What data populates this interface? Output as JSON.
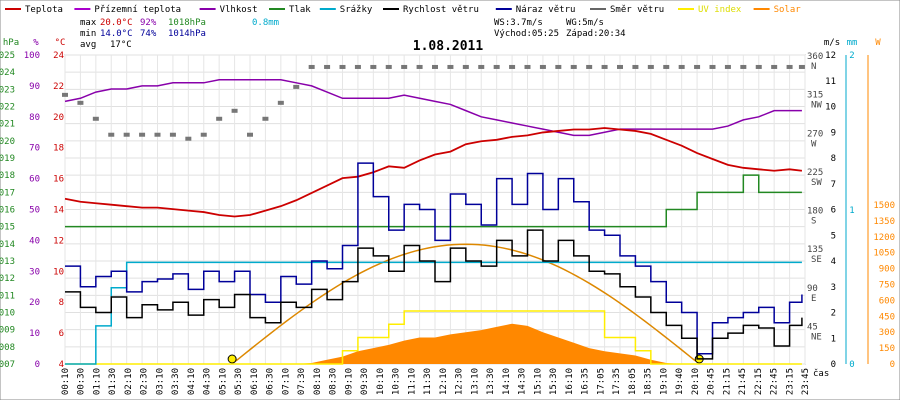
{
  "chart_data": {
    "type": "line",
    "title": "1.08.2011",
    "time_axis_label": "čas",
    "legend": [
      {
        "name": "Teplota",
        "color": "#cc0000"
      },
      {
        "name": "Přízemní teplota",
        "color": "#aa00cc"
      },
      {
        "name": "Vlhkost",
        "color": "#8800aa"
      },
      {
        "name": "Tlak",
        "color": "#228822"
      },
      {
        "name": "Srážky",
        "color": "#00aacc"
      },
      {
        "name": "Rychlost větru",
        "color": "#000000"
      },
      {
        "name": "Náraz větru",
        "color": "#000099"
      },
      {
        "name": "Směr větru",
        "color": "#666666"
      },
      {
        "name": "UV index",
        "color": "#ffee00"
      },
      {
        "name": "Solar",
        "color": "#ff8800"
      }
    ],
    "stats": {
      "max_label": "max",
      "max_temp": "20.0°C",
      "max_hum": "92%",
      "max_press": "1018hPa",
      "rain": "0.8mm",
      "min_label": "min",
      "min_temp": "14.0°C",
      "min_hum": "74%",
      "min_press": "1014hPa",
      "avg_label": "avg",
      "avg_temp": "17°C"
    },
    "info": {
      "ws": "WS:3.7m/s",
      "wg": "WG:5m/s",
      "sunrise": "Východ:05:25",
      "sunset": "Západ:20:34"
    },
    "left_axes": [
      {
        "unit": "hPa",
        "color": "#228822",
        "ticks": [
          "1025",
          "1024",
          "1023",
          "1022",
          "1021",
          "1020",
          "1019",
          "1018",
          "1017",
          "1016",
          "1015",
          "1014",
          "1013",
          "1012",
          "1011",
          "1010",
          "1009",
          "1008",
          "1007"
        ]
      },
      {
        "unit": "%",
        "color": "#8800aa",
        "ticks": [
          "100",
          "90",
          "80",
          "70",
          "60",
          "50",
          "40",
          "30",
          "20",
          "10",
          "0"
        ]
      },
      {
        "unit": "°C",
        "color": "#cc0000",
        "ticks": [
          "24",
          "22",
          "20",
          "18",
          "16",
          "14",
          "12",
          "10",
          "8",
          "6",
          "4"
        ]
      }
    ],
    "right_axes": {
      "direction": {
        "unit": "°",
        "ticks": [
          {
            "deg": "360",
            "dir": "N"
          },
          {
            "deg": "315",
            "dir": "NW"
          },
          {
            "deg": "270",
            "dir": "W"
          },
          {
            "deg": "225",
            "dir": "SW"
          },
          {
            "deg": "180",
            "dir": "S"
          },
          {
            "deg": "135",
            "dir": "SE"
          },
          {
            "deg": "90",
            "dir": "E"
          },
          {
            "deg": "45",
            "dir": "NE"
          }
        ]
      },
      "wind": {
        "unit": "m/s",
        "ticks": [
          "12",
          "11",
          "10",
          "9",
          "8",
          "7",
          "6",
          "5",
          "4",
          "3",
          "2",
          "1",
          "0"
        ]
      },
      "rain": {
        "unit": "mm",
        "color": "#00aacc",
        "ticks": [
          "2",
          "1",
          "0"
        ]
      },
      "solar": {
        "unit": "W",
        "color": "#ff8800",
        "ticks": [
          "1500",
          "1350",
          "1200",
          "1050",
          "900",
          "750",
          "600",
          "450",
          "300",
          "150",
          "0"
        ]
      }
    },
    "x_labels": [
      "00:10",
      "00:30",
      "01:10",
      "01:30",
      "02:10",
      "02:30",
      "03:10",
      "03:30",
      "04:10",
      "04:30",
      "05:10",
      "05:30",
      "06:10",
      "06:30",
      "07:10",
      "07:30",
      "08:10",
      "08:30",
      "09:10",
      "09:30",
      "10:10",
      "10:30",
      "11:10",
      "11:30",
      "12:10",
      "12:30",
      "13:10",
      "13:30",
      "14:10",
      "14:30",
      "15:10",
      "15:30",
      "16:10",
      "16:35",
      "17:05",
      "17:35",
      "18:05",
      "18:35",
      "19:10",
      "19:40",
      "20:10",
      "20:45",
      "21:15",
      "21:45",
      "22:15",
      "22:45",
      "23:15",
      "23:45"
    ],
    "hours": [
      0,
      0.5,
      1,
      1.5,
      2,
      2.5,
      3,
      3.5,
      4,
      4.5,
      5,
      5.5,
      6,
      6.5,
      7,
      7.5,
      8,
      8.5,
      9,
      9.5,
      10,
      10.5,
      11,
      11.5,
      12,
      12.5,
      13,
      13.5,
      14,
      14.5,
      15,
      15.5,
      16,
      16.5,
      17,
      17.5,
      18,
      18.5,
      19,
      19.5,
      20,
      20.5,
      21,
      21.5,
      22,
      22.5,
      23,
      23.5,
      23.9
    ],
    "series": [
      {
        "name": "Teplota",
        "unit": "°C",
        "values": [
          15.2,
          15.0,
          14.9,
          14.8,
          14.7,
          14.6,
          14.6,
          14.5,
          14.4,
          14.3,
          14.1,
          14.0,
          14.1,
          14.4,
          14.7,
          15.1,
          15.6,
          16.1,
          16.6,
          16.7,
          17.0,
          17.4,
          17.3,
          17.8,
          18.2,
          18.4,
          18.9,
          19.1,
          19.2,
          19.4,
          19.5,
          19.7,
          19.8,
          19.9,
          19.9,
          20.0,
          19.9,
          19.8,
          19.6,
          19.2,
          18.8,
          18.3,
          17.9,
          17.5,
          17.3,
          17.2,
          17.1,
          17.2,
          17.1
        ]
      },
      {
        "name": "Vlhkost",
        "unit": "%",
        "values": [
          85,
          86,
          88,
          89,
          89,
          90,
          90,
          91,
          91,
          91,
          92,
          92,
          92,
          92,
          92,
          91,
          90,
          88,
          86,
          86,
          86,
          86,
          87,
          86,
          85,
          84,
          82,
          80,
          79,
          78,
          77,
          76,
          75,
          74,
          74,
          75,
          76,
          76,
          76,
          76,
          76,
          76,
          76,
          77,
          79,
          80,
          82,
          82,
          82
        ]
      },
      {
        "name": "Tlak",
        "unit": "hPa",
        "values": [
          1015,
          1015,
          1015,
          1015,
          1015,
          1015,
          1015,
          1015,
          1015,
          1015,
          1015,
          1015,
          1015,
          1015,
          1015,
          1015,
          1015,
          1015,
          1015,
          1015,
          1015,
          1015,
          1015,
          1015,
          1015,
          1015,
          1015,
          1015,
          1015,
          1015,
          1015,
          1015,
          1015,
          1015,
          1015,
          1015,
          1015,
          1015,
          1015,
          1016,
          1016,
          1017,
          1017,
          1017,
          1018,
          1017,
          1017,
          1017,
          1017
        ]
      },
      {
        "name": "Srážky",
        "unit": "mm",
        "values": [
          0,
          0,
          0.3,
          0.6,
          0.8,
          0.8,
          0.8,
          0.8,
          0.8,
          0.8,
          0.8,
          0.8,
          0.8,
          0.8,
          0.8,
          0.8,
          0.8,
          0.8,
          0.8,
          0.8,
          0.8,
          0.8,
          0.8,
          0.8,
          0.8,
          0.8,
          0.8,
          0.8,
          0.8,
          0.8,
          0.8,
          0.8,
          0.8,
          0.8,
          0.8,
          0.8,
          0.8,
          0.8,
          0.8,
          0.8,
          0.8,
          0.8,
          0.8,
          0.8,
          0.8,
          0.8,
          0.8,
          0.8,
          0.8
        ]
      },
      {
        "name": "Rychlost větru",
        "unit": "m/s",
        "values": [
          2.8,
          2.2,
          2.0,
          2.6,
          1.8,
          2.3,
          2.1,
          2.4,
          1.9,
          2.5,
          2.2,
          2.7,
          1.8,
          1.6,
          2.4,
          2.2,
          2.9,
          2.5,
          3.2,
          4.5,
          4.2,
          3.6,
          4.6,
          4.0,
          3.2,
          4.5,
          4.0,
          3.8,
          4.8,
          4.2,
          5.2,
          4.0,
          4.8,
          4.2,
          3.6,
          3.5,
          3.0,
          2.6,
          2.0,
          1.5,
          1.0,
          0.2,
          1.0,
          1.2,
          1.5,
          1.4,
          0.7,
          1.5,
          1.8
        ]
      },
      {
        "name": "Náraz větru",
        "unit": "m/s",
        "values": [
          3.8,
          3.0,
          3.4,
          3.6,
          2.8,
          3.2,
          3.3,
          3.5,
          2.9,
          3.6,
          3.2,
          3.6,
          2.7,
          2.4,
          3.4,
          3.1,
          4.0,
          3.7,
          4.6,
          7.8,
          6.5,
          5.2,
          6.2,
          6.0,
          4.8,
          6.6,
          6.2,
          5.4,
          7.2,
          6.2,
          7.4,
          6.0,
          7.2,
          6.3,
          5.2,
          5.0,
          4.2,
          3.8,
          3.2,
          2.4,
          2.0,
          0.4,
          1.6,
          1.8,
          2.0,
          2.2,
          1.6,
          2.4,
          2.7
        ]
      },
      {
        "name": "Směr větru",
        "unit": "°",
        "values": [
          310,
          300,
          280,
          260,
          260,
          260,
          260,
          260,
          255,
          260,
          280,
          290,
          260,
          280,
          300,
          320,
          345,
          345,
          345,
          345,
          345,
          345,
          345,
          345,
          345,
          345,
          345,
          345,
          345,
          345,
          345,
          345,
          345,
          345,
          345,
          345,
          345,
          345,
          345,
          345,
          345,
          345,
          345,
          345,
          345,
          345,
          345,
          345,
          345
        ]
      },
      {
        "name": "UV index",
        "unit": "",
        "values": [
          0,
          0,
          0,
          0,
          0,
          0,
          0,
          0,
          0,
          0,
          0,
          0,
          0,
          0,
          0,
          0,
          0,
          0,
          1,
          2,
          2,
          3,
          4,
          4,
          4,
          4,
          4,
          4,
          4,
          4,
          4,
          4,
          4,
          4,
          4,
          2,
          2,
          1,
          0,
          0,
          0,
          0,
          0,
          0,
          0,
          0,
          0,
          0,
          0
        ]
      },
      {
        "name": "Solar",
        "unit": "W",
        "values": [
          0,
          0,
          0,
          0,
          0,
          0,
          0,
          0,
          0,
          0,
          0,
          0,
          0,
          0,
          0,
          0,
          10,
          40,
          70,
          120,
          150,
          180,
          220,
          250,
          250,
          280,
          300,
          320,
          350,
          380,
          360,
          300,
          250,
          200,
          150,
          120,
          100,
          80,
          40,
          10,
          0,
          0,
          0,
          0,
          0,
          0,
          0,
          0,
          0
        ]
      }
    ],
    "solar_theoretical_max": 1130
  }
}
